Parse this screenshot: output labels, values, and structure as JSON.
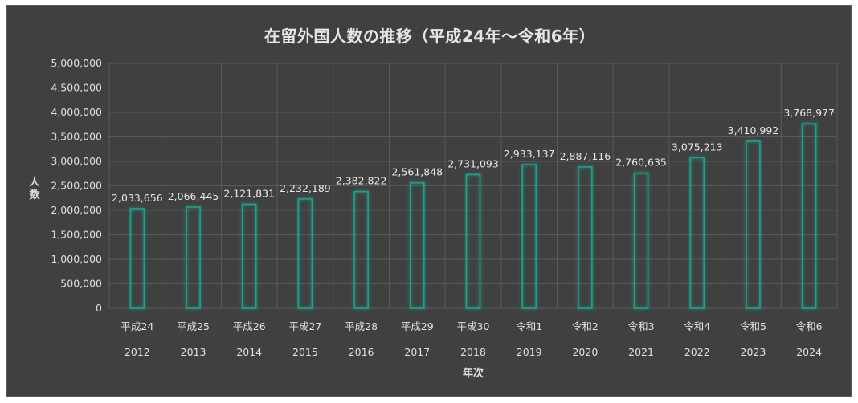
{
  "chart_data": {
    "type": "bar",
    "title": "在留外国人数の推移（平成24年～令和6年）",
    "xlabel": "年次",
    "ylabel": "人数",
    "categories": [
      "平成24",
      "平成25",
      "平成26",
      "平成27",
      "平成28",
      "平成29",
      "平成30",
      "令和1",
      "令和2",
      "令和3",
      "令和4",
      "令和5",
      "令和6"
    ],
    "categories_year": [
      "2012",
      "2013",
      "2014",
      "2015",
      "2016",
      "2017",
      "2018",
      "2019",
      "2020",
      "2021",
      "2022",
      "2023",
      "2024"
    ],
    "values": [
      2033656,
      2066445,
      2121831,
      2232189,
      2382822,
      2561848,
      2731093,
      2933137,
      2887116,
      2760635,
      3075213,
      3410992,
      3768977
    ],
    "value_labels": [
      "2,033,656",
      "2,066,445",
      "2,121,831",
      "2,232,189",
      "2,382,822",
      "2,561,848",
      "2,731,093",
      "2,933,137",
      "2,887,116",
      "2,760,635",
      "3,075,213",
      "3,410,992",
      "3,768,977"
    ],
    "ylim": [
      0,
      5000000
    ],
    "yticks": [
      0,
      500000,
      1000000,
      1500000,
      2000000,
      2500000,
      3000000,
      3500000,
      4000000,
      4500000,
      5000000
    ],
    "ytick_labels": [
      "0",
      "500,000",
      "1,000,000",
      "1,500,000",
      "2,000,000",
      "2,500,000",
      "3,000,000",
      "3,500,000",
      "4,000,000",
      "4,500,000",
      "5,000,000"
    ],
    "grid": true,
    "legend": "none",
    "colors": {
      "background": "#404040",
      "bar_edge": "#1aa38c",
      "grid": "#5a5a5a",
      "text": "#e0e0e0"
    }
  }
}
